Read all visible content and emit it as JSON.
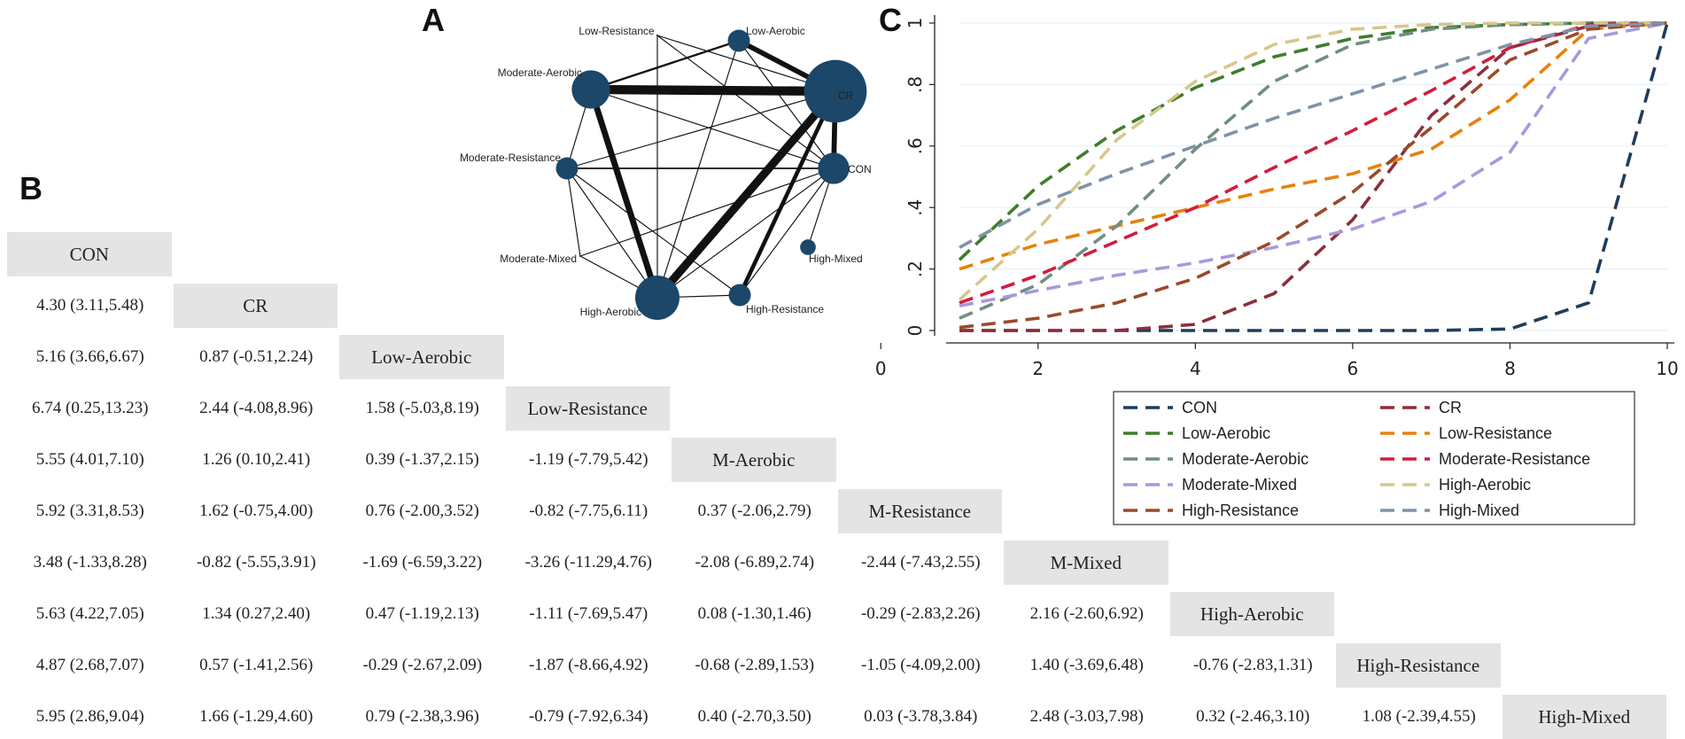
{
  "panels": {
    "a": "A",
    "b": "B",
    "c": "C"
  },
  "network": {
    "nodes": [
      "Low-Resistance",
      "Low-Aerobic",
      "CR",
      "Moderate-Aerobic",
      "Moderate-Resistance",
      "CON",
      "Moderate-Mixed",
      "High-Mixed",
      "High-Aerobic",
      "High-Resistance"
    ],
    "node_size": {
      "Low-Resistance": 0,
      "Low-Aerobic": 1,
      "CR": 8,
      "Moderate-Aerobic": 3,
      "Moderate-Resistance": 1,
      "CON": 2,
      "Moderate-Mixed": 0,
      "High-Mixed": 0.5,
      "High-Aerobic": 4,
      "High-Resistance": 1
    },
    "edges": [
      [
        "CR",
        "Moderate-Aerobic",
        9
      ],
      [
        "CR",
        "High-Aerobic",
        8
      ],
      [
        "CR",
        "CON",
        5
      ],
      [
        "CR",
        "Low-Aerobic",
        5
      ],
      [
        "CR",
        "High-Resistance",
        4
      ],
      [
        "Moderate-Aerobic",
        "High-Aerobic",
        6
      ],
      [
        "Moderate-Aerobic",
        "Low-Aerobic",
        2
      ],
      [
        "Moderate-Aerobic",
        "CON",
        1
      ],
      [
        "Moderate-Aerobic",
        "Moderate-Resistance",
        1
      ],
      [
        "Moderate-Resistance",
        "CON",
        1.5
      ],
      [
        "Moderate-Resistance",
        "Moderate-Mixed",
        1
      ],
      [
        "Moderate-Resistance",
        "High-Aerobic",
        1
      ],
      [
        "Moderate-Resistance",
        "High-Resistance",
        1
      ],
      [
        "Moderate-Mixed",
        "CON",
        1
      ],
      [
        "Moderate-Mixed",
        "High-Aerobic",
        1
      ],
      [
        "Low-Resistance",
        "CR",
        1
      ],
      [
        "Low-Resistance",
        "CON",
        1
      ],
      [
        "Low-Resistance",
        "High-Aerobic",
        1
      ],
      [
        "Low-Aerobic",
        "High-Aerobic",
        1
      ],
      [
        "Low-Aerobic",
        "CON",
        1
      ],
      [
        "CON",
        "High-Aerobic",
        1
      ],
      [
        "CON",
        "High-Resistance",
        1
      ],
      [
        "CON",
        "High-Mixed",
        1
      ],
      [
        "CR",
        "Moderate-Resistance",
        1
      ],
      [
        "High-Aerobic",
        "High-Resistance",
        1
      ]
    ]
  },
  "league": {
    "treatments": [
      "CON",
      "CR",
      "Low-Aerobic",
      "Low-Resistance",
      "M-Aerobic",
      "M-Resistance",
      "M-Mixed",
      "High-Aerobic",
      "High-Resistance",
      "High-Mixed"
    ],
    "rows": [
      [],
      [
        "4.30 (3.11,5.48)"
      ],
      [
        "5.16 (3.66,6.67)",
        "0.87 (-0.51,2.24)"
      ],
      [
        "6.74 (0.25,13.23)",
        "2.44 (-4.08,8.96)",
        "1.58 (-5.03,8.19)"
      ],
      [
        "5.55 (4.01,7.10)",
        "1.26 (0.10,2.41)",
        "0.39 (-1.37,2.15)",
        "-1.19 (-7.79,5.42)"
      ],
      [
        "5.92 (3.31,8.53)",
        "1.62 (-0.75,4.00)",
        "0.76 (-2.00,3.52)",
        "-0.82 (-7.75,6.11)",
        "0.37 (-2.06,2.79)"
      ],
      [
        "3.48 (-1.33,8.28)",
        "-0.82 (-5.55,3.91)",
        "-1.69 (-6.59,3.22)",
        "-3.26 (-11.29,4.76)",
        "-2.08 (-6.89,2.74)",
        "-2.44 (-7.43,2.55)"
      ],
      [
        "5.63 (4.22,7.05)",
        "1.34 (0.27,2.40)",
        "0.47 (-1.19,2.13)",
        "-1.11 (-7.69,5.47)",
        "0.08 (-1.30,1.46)",
        "-0.29 (-2.83,2.26)",
        "2.16 (-2.60,6.92)"
      ],
      [
        "4.87 (2.68,7.07)",
        "0.57 (-1.41,2.56)",
        "-0.29 (-2.67,2.09)",
        "-1.87 (-8.66,4.92)",
        "-0.68 (-2.89,1.53)",
        "-1.05 (-4.09,2.00)",
        "1.40 (-3.69,6.48)",
        "-0.76 (-2.83,1.31)"
      ],
      [
        "5.95 (2.86,9.04)",
        "1.66 (-1.29,4.60)",
        "0.79 (-2.38,3.96)",
        "-0.79 (-7.92,6.34)",
        "0.40 (-2.70,3.50)",
        "0.03 (-3.78,3.84)",
        "2.48 (-3.03,7.98)",
        "0.32 (-2.46,3.10)",
        "1.08 (-2.39,4.55)"
      ]
    ]
  },
  "chart_data": {
    "type": "line",
    "title": "",
    "xlabel": "",
    "ylabel": "",
    "xlim": [
      0,
      10
    ],
    "ylim": [
      0,
      1
    ],
    "x_ticks": [
      "0",
      "2",
      "4",
      "6",
      "8",
      "10"
    ],
    "y_ticks": [
      "0",
      ".2",
      ".4",
      ".6",
      ".8",
      "1"
    ],
    "x": [
      1,
      2,
      3,
      4,
      5,
      6,
      7,
      8,
      9,
      10
    ],
    "series": [
      {
        "name": "CON",
        "color": "#1f3d5a",
        "values": [
          0,
          0,
          0,
          0,
          0,
          0,
          0,
          0.005,
          0.09,
          1
        ]
      },
      {
        "name": "CR",
        "color": "#8b2f3a",
        "values": [
          0,
          0,
          0,
          0.02,
          0.12,
          0.36,
          0.7,
          0.92,
          0.99,
          1
        ]
      },
      {
        "name": "Low-Aerobic",
        "color": "#3e7d2c",
        "values": [
          0.23,
          0.47,
          0.65,
          0.79,
          0.89,
          0.95,
          0.985,
          0.995,
          1,
          1
        ]
      },
      {
        "name": "Low-Resistance",
        "color": "#e8800f",
        "values": [
          0.2,
          0.28,
          0.34,
          0.4,
          0.46,
          0.51,
          0.59,
          0.75,
          0.98,
          1
        ]
      },
      {
        "name": "Moderate-Aerobic",
        "color": "#6f8e80",
        "values": [
          0.04,
          0.15,
          0.34,
          0.59,
          0.81,
          0.93,
          0.98,
          0.995,
          1,
          1
        ]
      },
      {
        "name": "Moderate-Resistance",
        "color": "#d21c3e",
        "values": [
          0.09,
          0.18,
          0.29,
          0.4,
          0.53,
          0.65,
          0.78,
          0.92,
          0.995,
          1
        ]
      },
      {
        "name": "Moderate-Mixed",
        "color": "#a899dc",
        "values": [
          0.08,
          0.13,
          0.18,
          0.22,
          0.27,
          0.33,
          0.42,
          0.58,
          0.95,
          1
        ]
      },
      {
        "name": "High-Aerobic",
        "color": "#d6c78a",
        "values": [
          0.1,
          0.33,
          0.62,
          0.81,
          0.93,
          0.98,
          0.995,
          1,
          1,
          1
        ]
      },
      {
        "name": "High-Resistance",
        "color": "#9a4a2a",
        "values": [
          0.01,
          0.04,
          0.09,
          0.17,
          0.29,
          0.45,
          0.66,
          0.88,
          0.98,
          1
        ]
      },
      {
        "name": "High-Mixed",
        "color": "#7f93a8",
        "values": [
          0.27,
          0.41,
          0.51,
          0.6,
          0.69,
          0.77,
          0.85,
          0.93,
          0.99,
          1
        ]
      }
    ],
    "legend": {
      "placement": "bottom",
      "columns": 2
    }
  }
}
